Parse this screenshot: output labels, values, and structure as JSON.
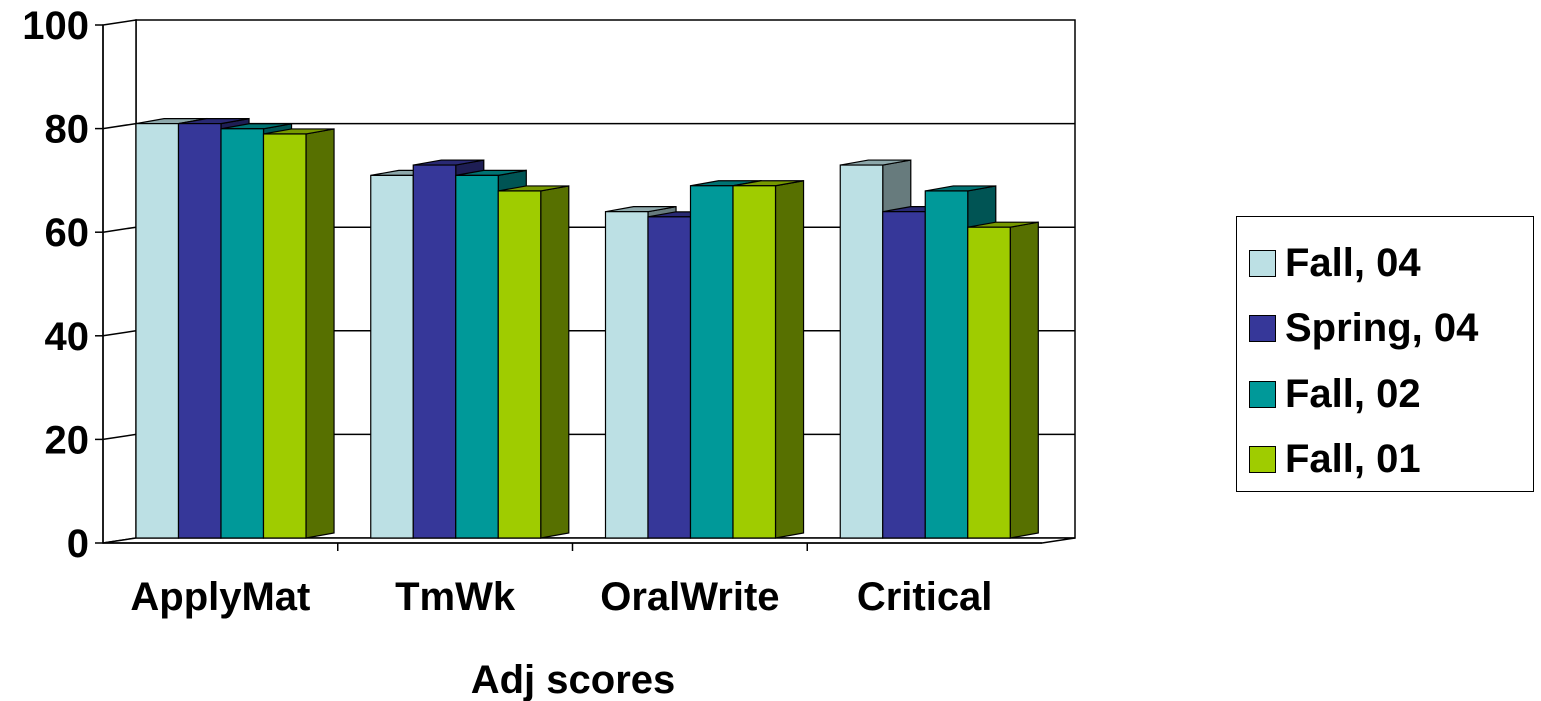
{
  "chart_data": {
    "type": "bar",
    "title": "",
    "xlabel": "Adj scores",
    "ylabel": "",
    "ylim": [
      0,
      100
    ],
    "yticks": [
      "0",
      "20",
      "40",
      "60",
      "80",
      "100"
    ],
    "grid": true,
    "legend_position": "right",
    "categories": [
      "ApplyMat",
      "TmWk",
      "OralWrite",
      "Critical"
    ],
    "series": [
      {
        "name": "Fall, 04",
        "color": "#BCE0E4",
        "values": [
          80,
          70,
          63,
          72
        ]
      },
      {
        "name": "Spring, 04",
        "color": "#363799",
        "values": [
          80,
          72,
          62,
          63
        ]
      },
      {
        "name": "Fall, 02",
        "color": "#009999",
        "values": [
          79,
          70,
          68,
          67
        ]
      },
      {
        "name": "Fall, 01",
        "color": "#9FCC00",
        "values": [
          78,
          67,
          68,
          60
        ]
      }
    ]
  }
}
